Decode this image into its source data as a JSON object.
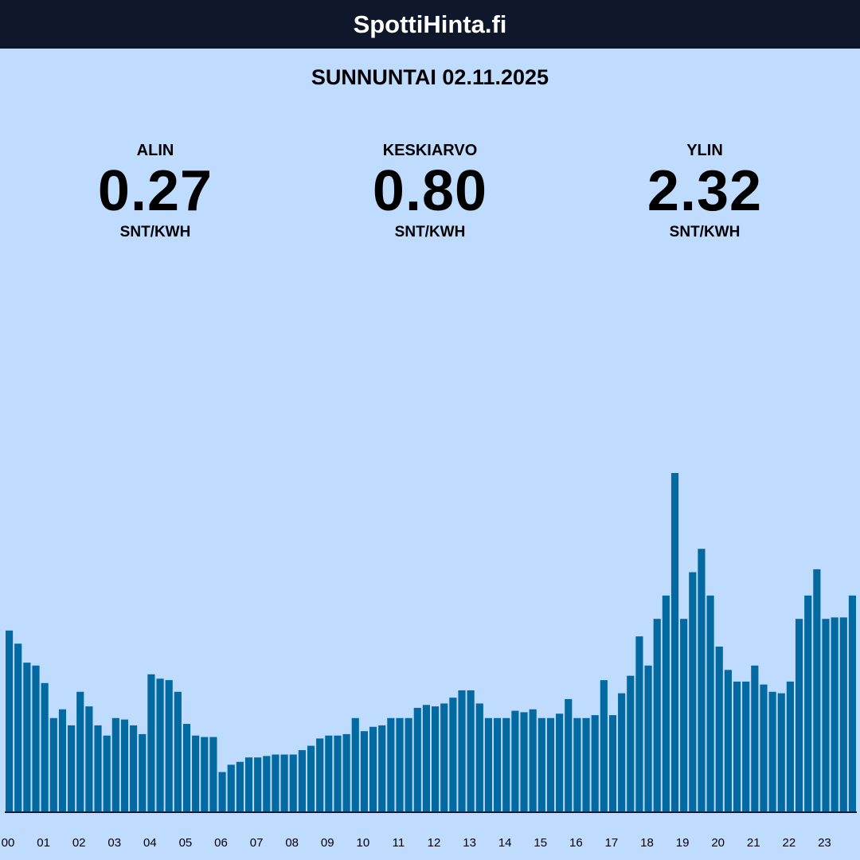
{
  "header": {
    "title": "SpottiHinta.fi"
  },
  "date_label": "SUNNUNTAI 02.11.2025",
  "stats": {
    "min": {
      "label": "ALIN",
      "value": "0.27",
      "unit": "SNT/KWH"
    },
    "avg": {
      "label": "KESKIARVO",
      "value": "0.80",
      "unit": "SNT/KWH"
    },
    "max": {
      "label": "YLIN",
      "value": "2.32",
      "unit": "SNT/KWH"
    }
  },
  "colors": {
    "background": "#bfdbfe",
    "header": "#0f172a",
    "bar": "#0369a1",
    "axis": "#0f172a"
  },
  "chart_data": {
    "type": "bar",
    "title": "",
    "xlabel": "",
    "ylabel": "",
    "unit": "snt/kWh",
    "interval_minutes": 15,
    "ylim": [
      0,
      2.32
    ],
    "grid": false,
    "legend": "none",
    "x_ticks": [
      "00",
      "01",
      "02",
      "03",
      "04",
      "05",
      "06",
      "07",
      "08",
      "09",
      "10",
      "11",
      "12",
      "13",
      "14",
      "15",
      "16",
      "17",
      "18",
      "19",
      "20",
      "21",
      "22",
      "23"
    ],
    "values": [
      1.24,
      1.15,
      1.02,
      1.0,
      0.88,
      0.64,
      0.7,
      0.59,
      0.82,
      0.72,
      0.59,
      0.52,
      0.64,
      0.63,
      0.59,
      0.53,
      0.94,
      0.91,
      0.9,
      0.82,
      0.6,
      0.52,
      0.51,
      0.51,
      0.27,
      0.32,
      0.34,
      0.37,
      0.37,
      0.38,
      0.39,
      0.39,
      0.39,
      0.42,
      0.45,
      0.5,
      0.52,
      0.52,
      0.53,
      0.64,
      0.55,
      0.58,
      0.59,
      0.64,
      0.64,
      0.64,
      0.71,
      0.73,
      0.72,
      0.74,
      0.78,
      0.83,
      0.83,
      0.74,
      0.64,
      0.64,
      0.64,
      0.69,
      0.68,
      0.7,
      0.64,
      0.64,
      0.67,
      0.77,
      0.64,
      0.64,
      0.66,
      0.9,
      0.66,
      0.81,
      0.93,
      1.2,
      1.0,
      1.32,
      1.48,
      2.32,
      1.32,
      1.64,
      1.8,
      1.48,
      1.13,
      0.97,
      0.89,
      0.89,
      1.0,
      0.87,
      0.82,
      0.81,
      0.89,
      1.32,
      1.48,
      1.66,
      1.32,
      1.33,
      1.33,
      1.48
    ]
  }
}
